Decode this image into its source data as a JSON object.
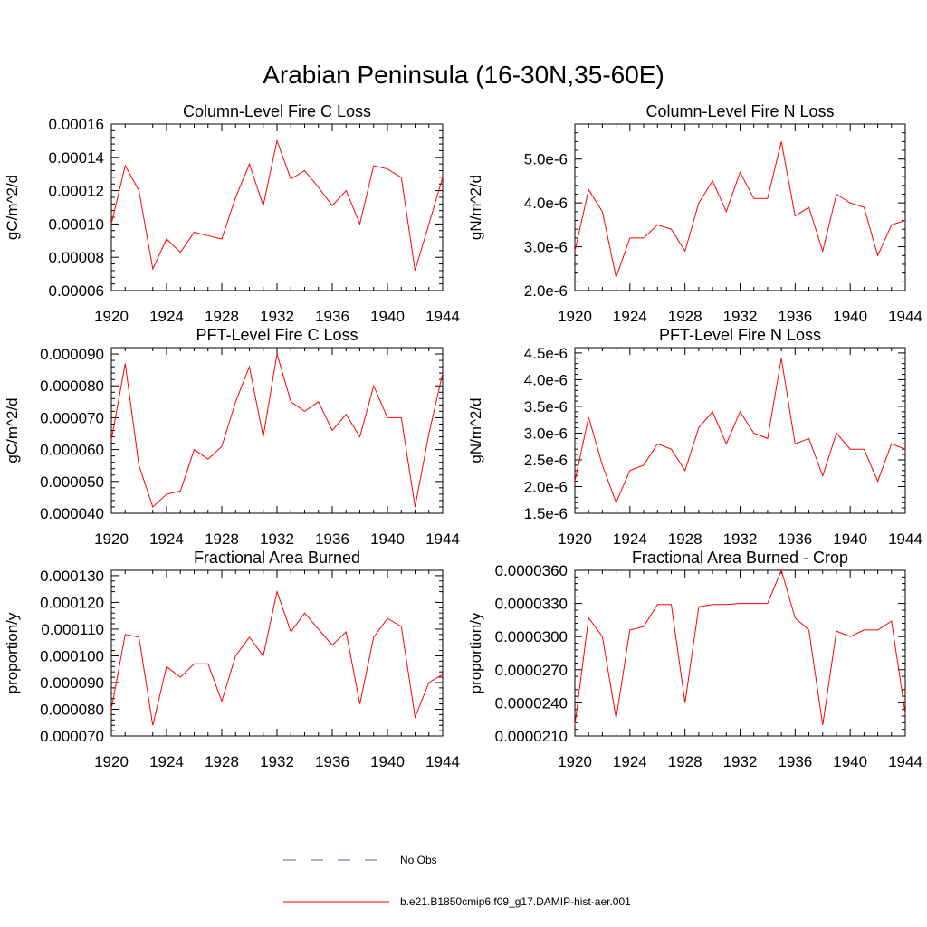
{
  "title": "Arabian Peninsula (16-30N,35-60E)",
  "colors": {
    "series": "#ff0000",
    "obs": "#5a5aa8",
    "axis": "#000000"
  },
  "legend": {
    "items": [
      {
        "label": "No Obs",
        "style": "dashed",
        "color": "#5a5aa8"
      },
      {
        "label": "b.e21.B1850cmip6.f09_g17.DAMIP-hist-aer.001",
        "style": "solid",
        "color": "#ff0000"
      }
    ]
  },
  "chart_data": [
    {
      "type": "line",
      "title": "Column-Level Fire C Loss",
      "ylabel": "gC/m^2/d",
      "xlim": [
        1920,
        1944
      ],
      "ylim": [
        6e-05,
        0.00016
      ],
      "xticks": [
        1920,
        1924,
        1928,
        1932,
        1936,
        1940,
        1944
      ],
      "xticklabels": [
        "1920",
        "1924",
        "1928",
        "1932",
        "1936",
        "1940",
        "1944"
      ],
      "yticks": [
        6e-05,
        8e-05,
        0.0001,
        0.00012,
        0.00014,
        0.00016
      ],
      "yticklabels": [
        "0.00006",
        "0.00008",
        "0.00010",
        "0.00012",
        "0.00014",
        "0.00016"
      ],
      "x": [
        1920,
        1921,
        1922,
        1923,
        1924,
        1925,
        1926,
        1927,
        1928,
        1929,
        1930,
        1931,
        1932,
        1933,
        1934,
        1935,
        1936,
        1937,
        1938,
        1939,
        1940,
        1941,
        1942,
        1943,
        1944
      ],
      "series": [
        {
          "name": "b.e21.B1850cmip6.f09_g17.DAMIP-hist-aer.001",
          "values": [
            0.0001,
            0.000135,
            0.00012,
            7.3e-05,
            9.1e-05,
            8.3e-05,
            9.5e-05,
            9.3e-05,
            9.1e-05,
            0.000116,
            0.000136,
            0.000111,
            0.00015,
            0.000127,
            0.000132,
            0.000122,
            0.000111,
            0.00012,
            0.0001,
            0.000135,
            0.000133,
            0.000128,
            7.2e-05,
            0.0001,
            0.000128
          ]
        }
      ]
    },
    {
      "type": "line",
      "title": "Column-Level Fire N Loss",
      "ylabel": "gN/m^2/d",
      "xlim": [
        1920,
        1944
      ],
      "ylim": [
        2e-06,
        5.8e-06
      ],
      "xticks": [
        1920,
        1924,
        1928,
        1932,
        1936,
        1940,
        1944
      ],
      "xticklabels": [
        "1920",
        "1924",
        "1928",
        "1932",
        "1936",
        "1940",
        "1944"
      ],
      "yticks": [
        2e-06,
        3e-06,
        4e-06,
        5e-06
      ],
      "yticklabels": [
        "2.0e-6",
        "3.0e-6",
        "4.0e-6",
        "5.0e-6"
      ],
      "x": [
        1920,
        1921,
        1922,
        1923,
        1924,
        1925,
        1926,
        1927,
        1928,
        1929,
        1930,
        1931,
        1932,
        1933,
        1934,
        1935,
        1936,
        1937,
        1938,
        1939,
        1940,
        1941,
        1942,
        1943,
        1944
      ],
      "series": [
        {
          "name": "b.e21.B1850cmip6.f09_g17.DAMIP-hist-aer.001",
          "values": [
            2.9e-06,
            4.3e-06,
            3.8e-06,
            2.3e-06,
            3.2e-06,
            3.2e-06,
            3.5e-06,
            3.4e-06,
            2.9e-06,
            4e-06,
            4.5e-06,
            3.8e-06,
            4.7e-06,
            4.1e-06,
            4.1e-06,
            5.4e-06,
            3.7e-06,
            3.9e-06,
            2.9e-06,
            4.2e-06,
            4e-06,
            3.9e-06,
            2.8e-06,
            3.5e-06,
            3.6e-06
          ]
        }
      ]
    },
    {
      "type": "line",
      "title": "PFT-Level Fire C Loss",
      "ylabel": "gC/m^2/d",
      "xlim": [
        1920,
        1944
      ],
      "ylim": [
        4e-05,
        9.2e-05
      ],
      "xticks": [
        1920,
        1924,
        1928,
        1932,
        1936,
        1940,
        1944
      ],
      "xticklabels": [
        "1920",
        "1924",
        "1928",
        "1932",
        "1936",
        "1940",
        "1944"
      ],
      "yticks": [
        4e-05,
        5e-05,
        6e-05,
        7e-05,
        8e-05,
        9e-05
      ],
      "yticklabels": [
        "0.000040",
        "0.000050",
        "0.000060",
        "0.000070",
        "0.000080",
        "0.000090"
      ],
      "x": [
        1920,
        1921,
        1922,
        1923,
        1924,
        1925,
        1926,
        1927,
        1928,
        1929,
        1930,
        1931,
        1932,
        1933,
        1934,
        1935,
        1936,
        1937,
        1938,
        1939,
        1940,
        1941,
        1942,
        1943,
        1944
      ],
      "series": [
        {
          "name": "b.e21.B1850cmip6.f09_g17.DAMIP-hist-aer.001",
          "values": [
            6.3e-05,
            8.7e-05,
            5.5e-05,
            4.2e-05,
            4.6e-05,
            4.7e-05,
            6e-05,
            5.7e-05,
            6.1e-05,
            7.5e-05,
            8.6e-05,
            6.4e-05,
            9e-05,
            7.5e-05,
            7.2e-05,
            7.5e-05,
            6.6e-05,
            7.1e-05,
            6.4e-05,
            8e-05,
            7e-05,
            7e-05,
            4.2e-05,
            6.5e-05,
            8.4e-05
          ]
        }
      ]
    },
    {
      "type": "line",
      "title": "PFT-Level Fire N Loss",
      "ylabel": "gN/m^2/d",
      "xlim": [
        1920,
        1944
      ],
      "ylim": [
        1.5e-06,
        4.6e-06
      ],
      "xticks": [
        1920,
        1924,
        1928,
        1932,
        1936,
        1940,
        1944
      ],
      "xticklabels": [
        "1920",
        "1924",
        "1928",
        "1932",
        "1936",
        "1940",
        "1944"
      ],
      "yticks": [
        1.5e-06,
        2e-06,
        2.5e-06,
        3e-06,
        3.5e-06,
        4e-06,
        4.5e-06
      ],
      "yticklabels": [
        "1.5e-6",
        "2.0e-6",
        "2.5e-6",
        "3.0e-6",
        "3.5e-6",
        "4.0e-6",
        "4.5e-6"
      ],
      "x": [
        1920,
        1921,
        1922,
        1923,
        1924,
        1925,
        1926,
        1927,
        1928,
        1929,
        1930,
        1931,
        1932,
        1933,
        1934,
        1935,
        1936,
        1937,
        1938,
        1939,
        1940,
        1941,
        1942,
        1943,
        1944
      ],
      "series": [
        {
          "name": "b.e21.B1850cmip6.f09_g17.DAMIP-hist-aer.001",
          "values": [
            2.1e-06,
            3.3e-06,
            2.4e-06,
            1.7e-06,
            2.3e-06,
            2.4e-06,
            2.8e-06,
            2.7e-06,
            2.3e-06,
            3.1e-06,
            3.4e-06,
            2.8e-06,
            3.4e-06,
            3e-06,
            2.9e-06,
            4.4e-06,
            2.8e-06,
            2.9e-06,
            2.2e-06,
            3e-06,
            2.7e-06,
            2.7e-06,
            2.1e-06,
            2.8e-06,
            2.7e-06
          ]
        }
      ]
    },
    {
      "type": "line",
      "title": "Fractional Area Burned",
      "ylabel": "proportion/y",
      "xlim": [
        1920,
        1944
      ],
      "ylim": [
        7e-05,
        0.000132
      ],
      "xticks": [
        1920,
        1924,
        1928,
        1932,
        1936,
        1940,
        1944
      ],
      "xticklabels": [
        "1920",
        "1924",
        "1928",
        "1932",
        "1936",
        "1940",
        "1944"
      ],
      "yticks": [
        7e-05,
        8e-05,
        9e-05,
        0.0001,
        0.00011,
        0.00012,
        0.00013
      ],
      "yticklabels": [
        "0.000070",
        "0.000080",
        "0.000090",
        "0.000100",
        "0.000110",
        "0.000120",
        "0.000130"
      ],
      "x": [
        1920,
        1921,
        1922,
        1923,
        1924,
        1925,
        1926,
        1927,
        1928,
        1929,
        1930,
        1931,
        1932,
        1933,
        1934,
        1935,
        1936,
        1937,
        1938,
        1939,
        1940,
        1941,
        1942,
        1943,
        1944
      ],
      "series": [
        {
          "name": "b.e21.B1850cmip6.f09_g17.DAMIP-hist-aer.001",
          "values": [
            8e-05,
            0.000108,
            0.000107,
            7.4e-05,
            9.6e-05,
            9.2e-05,
            9.7e-05,
            9.7e-05,
            8.3e-05,
            0.0001,
            0.000107,
            0.0001,
            0.000124,
            0.000109,
            0.000116,
            0.00011,
            0.000104,
            0.000109,
            8.2e-05,
            0.000107,
            0.000114,
            0.000111,
            7.7e-05,
            9e-05,
            9.3e-05
          ]
        }
      ]
    },
    {
      "type": "line",
      "title": "Fractional Area Burned - Crop",
      "ylabel": "proportion/y",
      "xlim": [
        1920,
        1944
      ],
      "ylim": [
        2.1e-05,
        3.6e-05
      ],
      "xticks": [
        1920,
        1924,
        1928,
        1932,
        1936,
        1940,
        1944
      ],
      "xticklabels": [
        "1920",
        "1924",
        "1928",
        "1932",
        "1936",
        "1940",
        "1944"
      ],
      "yticks": [
        2.1e-05,
        2.4e-05,
        2.7e-05,
        3e-05,
        3.3e-05,
        3.6e-05
      ],
      "yticklabels": [
        "0.0000210",
        "0.0000240",
        "0.0000270",
        "0.0000300",
        "0.0000330",
        "0.0000360"
      ],
      "x": [
        1920,
        1921,
        1922,
        1923,
        1924,
        1925,
        1926,
        1927,
        1928,
        1929,
        1930,
        1931,
        1932,
        1933,
        1934,
        1935,
        1936,
        1937,
        1938,
        1939,
        1940,
        1941,
        1942,
        1943,
        1944
      ],
      "series": [
        {
          "name": "b.e21.B1850cmip6.f09_g17.DAMIP-hist-aer.001",
          "values": [
            2.2e-05,
            3.17e-05,
            3e-05,
            2.26e-05,
            3.06e-05,
            3.09e-05,
            3.29e-05,
            3.29e-05,
            2.4e-05,
            3.27e-05,
            3.29e-05,
            3.29e-05,
            3.3e-05,
            3.3e-05,
            3.3e-05,
            3.6e-05,
            3.17e-05,
            3.06e-05,
            2.2e-05,
            3.05e-05,
            3e-05,
            3.06e-05,
            3.06e-05,
            3.14e-05,
            2.3e-05
          ]
        }
      ]
    }
  ]
}
